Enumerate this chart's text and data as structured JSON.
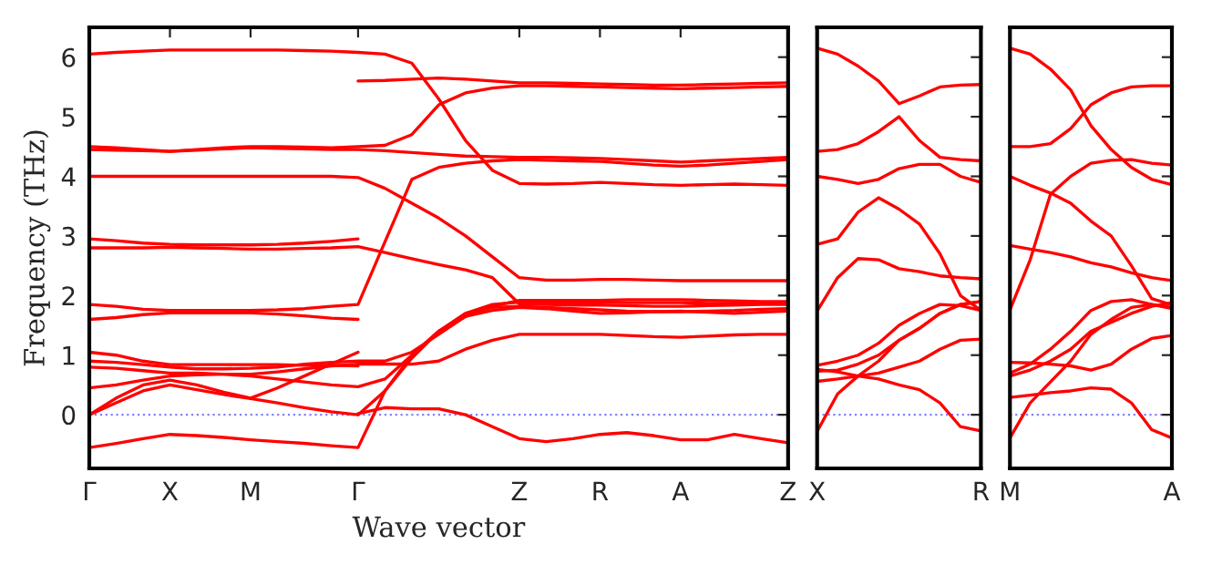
{
  "chart_data": [
    {
      "type": "line",
      "xlabel": "Wave vector",
      "ylabel": "Frequency (THz)",
      "ylim": [
        -0.9,
        6.5
      ],
      "yticks": [
        0,
        1,
        2,
        3,
        4,
        5,
        6
      ],
      "categories": [
        "Γ",
        null,
        null,
        "X",
        null,
        null,
        "M",
        null,
        null,
        null,
        "Γ",
        null,
        null,
        null,
        null,
        null,
        "Z",
        null,
        null,
        "R",
        null,
        null,
        "A",
        null,
        null,
        null,
        "Z"
      ],
      "grid": false,
      "line_style": "solid",
      "ref_lines": [
        {
          "axis": "y",
          "value": 0,
          "color": "#8080ff",
          "line_style": "dotted"
        }
      ],
      "series": [
        {
          "color": "#ff0000",
          "values": [
            6.05,
            6.08,
            6.1,
            6.12,
            6.12,
            6.12,
            6.12,
            6.12,
            6.11,
            6.1,
            6.08,
            6.05,
            5.9,
            5.3,
            4.6,
            4.1,
            3.88,
            3.87,
            3.88,
            3.9,
            3.88,
            3.86,
            3.85,
            3.86,
            3.87,
            3.86,
            3.85
          ]
        },
        {
          "color": "#ff0000",
          "values": [
            null,
            null,
            null,
            null,
            null,
            null,
            null,
            null,
            null,
            null,
            5.6,
            5.61,
            5.63,
            5.65,
            5.63,
            5.6,
            5.57,
            5.57,
            5.56,
            5.55,
            5.54,
            5.53,
            5.53,
            5.54,
            5.55,
            5.56,
            5.57
          ]
        },
        {
          "color": "#ff0000",
          "values": [
            4.5,
            4.48,
            4.45,
            4.42,
            4.45,
            4.48,
            4.5,
            4.5,
            4.49,
            4.48,
            4.5,
            4.52,
            4.7,
            5.2,
            5.4,
            5.48,
            5.52,
            5.52,
            5.51,
            5.5,
            5.49,
            5.48,
            5.47,
            5.48,
            5.49,
            5.5,
            5.51
          ]
        },
        {
          "color": "#ff0000",
          "values": [
            4.45,
            4.44,
            4.43,
            4.42,
            4.44,
            4.46,
            4.48,
            4.47,
            4.46,
            4.45,
            4.45,
            4.43,
            4.4,
            4.37,
            4.34,
            4.33,
            4.32,
            4.32,
            4.31,
            4.3,
            4.28,
            4.26,
            4.24,
            4.26,
            4.28,
            4.3,
            4.32
          ]
        },
        {
          "color": "#ff0000",
          "values": [
            4.0,
            4.0,
            4.0,
            4.0,
            4.0,
            4.0,
            4.0,
            4.0,
            4.0,
            4.0,
            3.98,
            3.8,
            3.55,
            3.3,
            3.0,
            2.65,
            2.3,
            2.26,
            2.26,
            2.27,
            2.27,
            2.26,
            2.25,
            2.25,
            2.25,
            2.25,
            2.25
          ]
        },
        {
          "color": "#ff0000",
          "values": [
            2.95,
            2.92,
            2.88,
            2.86,
            2.85,
            2.85,
            2.85,
            2.86,
            2.88,
            2.91,
            2.95,
            null,
            null,
            null,
            null,
            null,
            null,
            null,
            null,
            null,
            null,
            null,
            null,
            null,
            null,
            null,
            null
          ]
        },
        {
          "color": "#ff0000",
          "values": [
            2.8,
            2.8,
            2.8,
            2.81,
            2.8,
            2.79,
            2.78,
            2.78,
            2.79,
            2.8,
            2.82,
            2.72,
            2.62,
            2.52,
            2.43,
            2.3,
            1.86,
            1.85,
            1.84,
            1.84,
            1.83,
            1.82,
            1.82,
            1.83,
            1.84,
            1.85,
            1.85
          ]
        },
        {
          "color": "#ff0000",
          "values": [
            1.85,
            1.82,
            1.77,
            1.75,
            1.75,
            1.75,
            1.75,
            1.76,
            1.78,
            1.82,
            1.85,
            2.9,
            3.95,
            4.15,
            4.22,
            4.26,
            4.28,
            4.27,
            4.26,
            4.25,
            4.22,
            4.19,
            4.17,
            4.19,
            4.22,
            4.25,
            4.28
          ]
        },
        {
          "color": "#ff0000",
          "values": [
            1.6,
            1.63,
            1.68,
            1.71,
            1.71,
            1.71,
            1.71,
            1.69,
            1.66,
            1.62,
            1.6,
            null,
            null,
            null,
            null,
            null,
            null,
            null,
            null,
            null,
            null,
            null,
            null,
            null,
            null,
            null,
            null
          ]
        },
        {
          "color": "#ff0000",
          "values": [
            1.05,
            1.0,
            0.9,
            0.84,
            0.84,
            0.84,
            0.84,
            0.84,
            0.83,
            0.83,
            0.82,
            null,
            null,
            null,
            null,
            null,
            null,
            null,
            null,
            null,
            null,
            null,
            null,
            null,
            null,
            null,
            null
          ]
        },
        {
          "color": "#ff0000",
          "values": [
            0.9,
            0.88,
            0.84,
            0.8,
            0.77,
            0.77,
            0.78,
            0.8,
            0.85,
            0.88,
            0.9,
            0.9,
            1.05,
            1.35,
            1.65,
            1.82,
            1.92,
            1.92,
            1.92,
            1.92,
            1.93,
            1.93,
            1.93,
            1.92,
            1.91,
            1.9,
            1.9
          ]
        },
        {
          "color": "#ff0000",
          "values": [
            0.45,
            0.5,
            0.58,
            0.65,
            0.67,
            0.68,
            0.68,
            0.72,
            0.77,
            0.82,
            0.85,
            0.85,
            0.85,
            0.9,
            1.1,
            1.25,
            1.35,
            1.35,
            1.35,
            1.35,
            1.33,
            1.31,
            1.3,
            1.32,
            1.34,
            1.35,
            1.35
          ]
        },
        {
          "color": "#ff0000",
          "values": [
            0.8,
            0.78,
            0.74,
            0.7,
            0.7,
            0.68,
            0.65,
            0.6,
            0.55,
            0.5,
            0.47,
            0.6,
            1.0,
            1.4,
            1.7,
            1.8,
            1.82,
            1.8,
            1.78,
            1.76,
            1.74,
            1.73,
            1.73,
            1.74,
            1.75,
            1.77,
            1.78
          ]
        },
        {
          "color": "#ff0000",
          "values": [
            0.0,
            0.28,
            0.5,
            0.58,
            0.5,
            0.38,
            0.28,
            0.45,
            0.65,
            0.85,
            1.05,
            null,
            null,
            null,
            null,
            null,
            null,
            null,
            null,
            null,
            null,
            null,
            null,
            null,
            null,
            null,
            null
          ]
        },
        {
          "color": "#ff0000",
          "values": [
            0.0,
            0.2,
            0.4,
            0.5,
            0.42,
            0.34,
            0.27,
            0.2,
            0.12,
            0.05,
            0.0,
            0.4,
            0.95,
            1.4,
            1.7,
            1.85,
            1.89,
            1.89,
            1.89,
            1.89,
            1.88,
            1.88,
            1.88,
            1.87,
            1.87,
            1.87,
            1.87
          ]
        },
        {
          "color": "#ff0000",
          "values": [
            -0.55,
            -0.48,
            -0.4,
            -0.33,
            -0.35,
            -0.38,
            -0.42,
            -0.45,
            -0.48,
            -0.52,
            -0.55,
            0.4,
            1.0,
            1.4,
            1.65,
            1.75,
            1.8,
            1.78,
            1.74,
            1.7,
            1.71,
            1.73,
            1.74,
            1.72,
            1.7,
            1.72,
            1.74
          ]
        },
        {
          "color": "#ff0000",
          "values": [
            null,
            null,
            null,
            null,
            null,
            null,
            null,
            null,
            null,
            null,
            0.02,
            0.12,
            0.1,
            0.1,
            0.0,
            -0.2,
            -0.4,
            -0.45,
            -0.4,
            -0.33,
            -0.3,
            -0.35,
            -0.42,
            -0.42,
            -0.33,
            -0.4,
            -0.47
          ]
        }
      ]
    },
    {
      "type": "line",
      "ylim": [
        -0.9,
        6.5
      ],
      "yticks": [
        0,
        1,
        2,
        3,
        4,
        5,
        6
      ],
      "tick_labels": "x",
      "categories": [
        "X",
        null,
        null,
        null,
        null,
        null,
        null,
        null,
        "R"
      ],
      "grid": false,
      "line_style": "solid",
      "ref_lines": [
        {
          "axis": "y",
          "value": 0,
          "color": "#8080ff",
          "line_style": "dotted"
        }
      ],
      "series": [
        {
          "color": "#ff0000",
          "values": [
            6.15,
            6.05,
            5.85,
            5.6,
            5.22,
            5.35,
            5.5,
            5.53,
            5.54
          ]
        },
        {
          "color": "#ff0000",
          "values": [
            4.42,
            4.45,
            4.55,
            4.75,
            5.0,
            4.6,
            4.32,
            4.28,
            4.26
          ]
        },
        {
          "color": "#ff0000",
          "values": [
            4.0,
            3.95,
            3.88,
            3.95,
            4.13,
            4.2,
            4.2,
            4.0,
            3.9
          ]
        },
        {
          "color": "#ff0000",
          "values": [
            2.86,
            2.95,
            3.4,
            3.64,
            3.45,
            3.2,
            2.7,
            2.0,
            1.75
          ]
        },
        {
          "color": "#ff0000",
          "values": [
            1.74,
            2.3,
            2.62,
            2.6,
            2.45,
            2.4,
            2.33,
            2.3,
            2.28
          ]
        },
        {
          "color": "#ff0000",
          "values": [
            0.83,
            0.9,
            1.0,
            1.2,
            1.5,
            1.7,
            1.85,
            1.83,
            1.75
          ]
        },
        {
          "color": "#ff0000",
          "values": [
            0.73,
            0.75,
            0.85,
            1.0,
            1.25,
            1.45,
            1.7,
            1.85,
            1.9
          ]
        },
        {
          "color": "#ff0000",
          "values": [
            0.56,
            0.6,
            0.65,
            0.7,
            0.8,
            0.9,
            1.1,
            1.25,
            1.27
          ]
        },
        {
          "color": "#ff0000",
          "values": [
            0.76,
            0.72,
            0.65,
            0.6,
            0.5,
            0.42,
            0.2,
            -0.2,
            -0.27
          ]
        },
        {
          "color": "#ff0000",
          "values": [
            -0.28,
            0.35,
            0.65,
            0.9,
            1.25,
            1.45,
            1.7,
            1.85,
            1.9
          ]
        }
      ]
    },
    {
      "type": "line",
      "ylim": [
        -0.9,
        6.5
      ],
      "yticks": [
        0,
        1,
        2,
        3,
        4,
        5,
        6
      ],
      "tick_labels": "x",
      "categories": [
        "M",
        null,
        null,
        null,
        null,
        null,
        null,
        null,
        "A"
      ],
      "grid": false,
      "line_style": "solid",
      "ref_lines": [
        {
          "axis": "y",
          "value": 0,
          "color": "#8080ff",
          "line_style": "dotted"
        }
      ],
      "series": [
        {
          "color": "#ff0000",
          "values": [
            6.15,
            6.05,
            5.8,
            5.45,
            4.85,
            4.45,
            4.15,
            3.95,
            3.86
          ]
        },
        {
          "color": "#ff0000",
          "values": [
            4.5,
            4.5,
            4.55,
            4.8,
            5.2,
            5.4,
            5.5,
            5.52,
            5.52
          ]
        },
        {
          "color": "#ff0000",
          "values": [
            1.76,
            2.6,
            3.7,
            4.0,
            4.22,
            4.27,
            4.28,
            4.22,
            4.19
          ]
        },
        {
          "color": "#ff0000",
          "values": [
            4.0,
            3.85,
            3.72,
            3.55,
            3.25,
            3.0,
            2.5,
            1.95,
            1.84
          ]
        },
        {
          "color": "#ff0000",
          "values": [
            2.84,
            2.78,
            2.72,
            2.65,
            2.55,
            2.48,
            2.38,
            2.3,
            2.25
          ]
        },
        {
          "color": "#ff0000",
          "values": [
            0.88,
            0.87,
            0.85,
            0.82,
            0.75,
            0.85,
            1.1,
            1.28,
            1.33
          ]
        },
        {
          "color": "#ff0000",
          "values": [
            0.7,
            0.85,
            1.1,
            1.4,
            1.75,
            1.9,
            1.93,
            1.85,
            1.78
          ]
        },
        {
          "color": "#ff0000",
          "values": [
            0.65,
            0.75,
            0.9,
            1.1,
            1.4,
            1.55,
            1.7,
            1.82,
            1.88
          ]
        },
        {
          "color": "#ff0000",
          "values": [
            0.29,
            0.33,
            0.37,
            0.4,
            0.45,
            0.43,
            0.2,
            -0.25,
            -0.39
          ]
        },
        {
          "color": "#ff0000",
          "values": [
            -0.39,
            0.2,
            0.55,
            0.9,
            1.35,
            1.6,
            1.8,
            1.85,
            1.8
          ]
        }
      ]
    }
  ]
}
